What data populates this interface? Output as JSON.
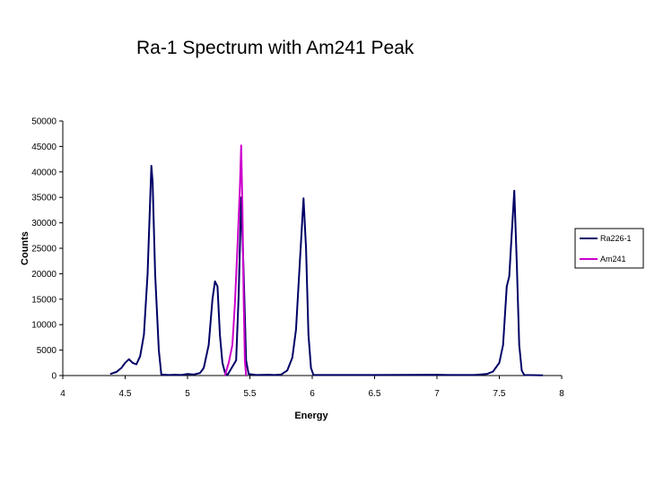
{
  "title": "Ra-1 Spectrum with Am241 Peak",
  "chart_data": {
    "type": "line",
    "title": "Ra-1 Spectrum with Am241 Peak",
    "xlabel": "Energy",
    "ylabel": "Counts",
    "xlim": [
      4,
      8
    ],
    "ylim": [
      0,
      50000
    ],
    "xticks": [
      4,
      4.5,
      5,
      5.5,
      6,
      6.5,
      7,
      7.5,
      8
    ],
    "xtick_labels": [
      "4",
      "4.5",
      "5",
      "5.5",
      "6",
      "6.5",
      "7",
      "7.5",
      "8"
    ],
    "yticks": [
      0,
      5000,
      10000,
      15000,
      20000,
      25000,
      30000,
      35000,
      40000,
      45000,
      50000
    ],
    "ytick_labels": [
      "0",
      "5000",
      "10000",
      "15000",
      "20000",
      "25000",
      "30000",
      "35000",
      "40000",
      "45000",
      "50000"
    ],
    "grid": false,
    "legend_position": "right",
    "series": [
      {
        "name": "Ra226-1",
        "color": "#000066",
        "points": [
          [
            4.38,
            300
          ],
          [
            4.43,
            700
          ],
          [
            4.47,
            1500
          ],
          [
            4.5,
            2500
          ],
          [
            4.53,
            3200
          ],
          [
            4.56,
            2500
          ],
          [
            4.59,
            2200
          ],
          [
            4.62,
            3800
          ],
          [
            4.65,
            8000
          ],
          [
            4.68,
            20000
          ],
          [
            4.71,
            41200
          ],
          [
            4.72,
            38000
          ],
          [
            4.74,
            20000
          ],
          [
            4.77,
            5000
          ],
          [
            4.79,
            200
          ],
          [
            4.85,
            100
          ],
          [
            4.9,
            150
          ],
          [
            4.95,
            100
          ],
          [
            5.0,
            300
          ],
          [
            5.05,
            200
          ],
          [
            5.1,
            500
          ],
          [
            5.13,
            1500
          ],
          [
            5.17,
            6000
          ],
          [
            5.2,
            15000
          ],
          [
            5.22,
            18500
          ],
          [
            5.24,
            17500
          ],
          [
            5.26,
            8000
          ],
          [
            5.28,
            2500
          ],
          [
            5.3,
            600
          ],
          [
            5.32,
            100
          ],
          [
            5.39,
            3000
          ],
          [
            5.41,
            15800
          ],
          [
            5.43,
            35000
          ],
          [
            5.45,
            20000
          ],
          [
            5.47,
            3000
          ],
          [
            5.49,
            300
          ],
          [
            5.55,
            100
          ],
          [
            5.65,
            150
          ],
          [
            5.7,
            100
          ],
          [
            5.75,
            200
          ],
          [
            5.8,
            1000
          ],
          [
            5.84,
            3500
          ],
          [
            5.87,
            9000
          ],
          [
            5.9,
            22000
          ],
          [
            5.93,
            34800
          ],
          [
            5.95,
            25000
          ],
          [
            5.97,
            8000
          ],
          [
            5.99,
            1500
          ],
          [
            6.01,
            100
          ],
          [
            6.5,
            100
          ],
          [
            7.0,
            150
          ],
          [
            7.1,
            100
          ],
          [
            7.3,
            100
          ],
          [
            7.4,
            300
          ],
          [
            7.45,
            800
          ],
          [
            7.5,
            2500
          ],
          [
            7.53,
            6000
          ],
          [
            7.56,
            17500
          ],
          [
            7.58,
            19500
          ],
          [
            7.6,
            28000
          ],
          [
            7.62,
            36300
          ],
          [
            7.64,
            22000
          ],
          [
            7.66,
            6000
          ],
          [
            7.68,
            1000
          ],
          [
            7.7,
            100
          ],
          [
            7.85,
            50
          ]
        ]
      },
      {
        "name": "Am241",
        "color": "#cc00cc",
        "points": [
          [
            5.3,
            0
          ],
          [
            5.33,
            2500
          ],
          [
            5.36,
            6000
          ],
          [
            5.38,
            14000
          ],
          [
            5.4,
            25000
          ],
          [
            5.42,
            37000
          ],
          [
            5.43,
            45200
          ],
          [
            5.44,
            33000
          ],
          [
            5.45,
            15000
          ],
          [
            5.46,
            3000
          ],
          [
            5.47,
            0
          ]
        ]
      }
    ]
  }
}
